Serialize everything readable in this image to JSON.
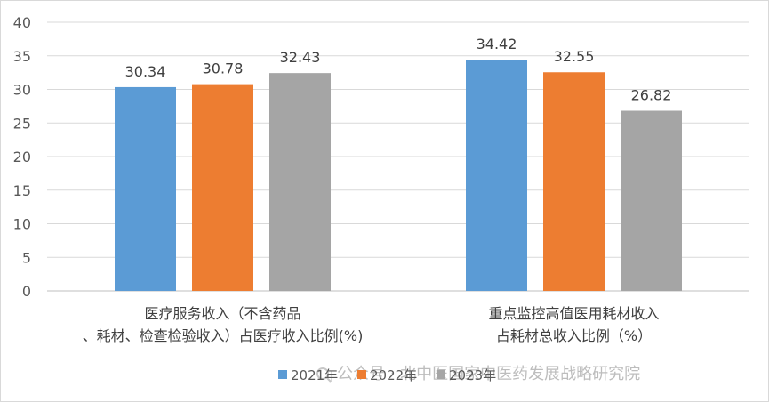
{
  "chart_data": {
    "type": "bar",
    "categories": [
      [
        "医疗服务收入（不含药品",
        "、耗材、检查检验收入）占医疗收入比例(%)"
      ],
      [
        "重点监控高值医用耗材收入",
        "占耗材总收入比例（%）"
      ]
    ],
    "series": [
      {
        "name": "2021年",
        "values": [
          30.34,
          34.42
        ],
        "color": "#5B9BD5"
      },
      {
        "name": "2022年",
        "values": [
          30.78,
          32.55
        ],
        "color": "#ED7D31"
      },
      {
        "name": "2023年",
        "values": [
          32.43,
          26.82
        ],
        "color": "#A5A5A5"
      }
    ],
    "data_labels": [
      [
        "30.34",
        "34.42"
      ],
      [
        "30.78",
        "32.55"
      ],
      [
        "32.43",
        "26.82"
      ]
    ],
    "ylim": [
      0,
      40
    ],
    "yticks": [
      0,
      5,
      10,
      15,
      20,
      25,
      30,
      35,
      40
    ],
    "grid": true,
    "legend_position": "bottom"
  },
  "watermark": {
    "icon": "wechat-search-icon",
    "text": "公众号 · 北中医国家中医药发展战略研究院"
  }
}
